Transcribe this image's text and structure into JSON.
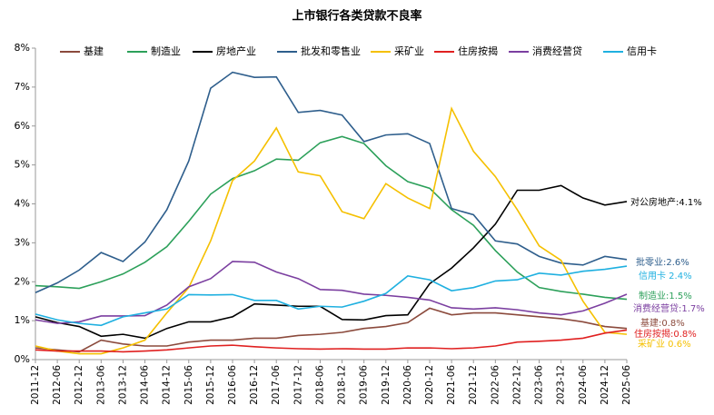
{
  "chart_data": {
    "type": "line",
    "title": "上市银行各类贷款不良率",
    "categories": [
      "2011-12",
      "2012-06",
      "2012-12",
      "2013-06",
      "2013-12",
      "2014-06",
      "2014-12",
      "2015-06",
      "2015-12",
      "2016-06",
      "2016-12",
      "2017-06",
      "2017-12",
      "2018-06",
      "2018-12",
      "2019-06",
      "2019-12",
      "2020-06",
      "2020-12",
      "2021-06",
      "2021-12",
      "2022-06",
      "2022-12",
      "2023-06",
      "2023-12",
      "2024-06",
      "2024-12",
      "2025-06"
    ],
    "series": [
      {
        "name": "基建",
        "color": "#8b4a3c",
        "values": [
          0.3,
          0.25,
          0.2,
          0.5,
          0.4,
          0.35,
          0.35,
          0.45,
          0.5,
          0.5,
          0.55,
          0.55,
          0.62,
          0.65,
          0.7,
          0.8,
          0.85,
          0.95,
          1.32,
          1.15,
          1.2,
          1.2,
          1.15,
          1.1,
          1.05,
          0.97,
          0.85,
          0.8
        ]
      },
      {
        "name": "制造业",
        "color": "#2ca05a",
        "values": [
          1.9,
          1.87,
          1.83,
          2.0,
          2.2,
          2.5,
          2.9,
          3.55,
          4.25,
          4.65,
          4.85,
          5.15,
          5.12,
          5.57,
          5.73,
          5.55,
          4.98,
          4.57,
          4.4,
          3.85,
          3.45,
          2.8,
          2.25,
          1.85,
          1.75,
          1.68,
          1.6,
          1.55
        ]
      },
      {
        "name": "房地产业",
        "color": "#000000",
        "values": [
          1.1,
          0.95,
          0.85,
          0.6,
          0.65,
          0.55,
          0.8,
          0.97,
          0.97,
          1.1,
          1.43,
          1.4,
          1.37,
          1.37,
          1.03,
          1.02,
          1.13,
          1.15,
          1.95,
          2.35,
          2.87,
          3.48,
          4.35,
          4.35,
          4.47,
          4.15,
          3.97,
          4.06
        ]
      },
      {
        "name": "批发和零售业",
        "color": "#2e5e8c",
        "values": [
          1.72,
          1.97,
          2.3,
          2.75,
          2.52,
          3.02,
          3.85,
          5.1,
          6.97,
          7.38,
          7.25,
          7.26,
          6.35,
          6.4,
          6.28,
          5.6,
          5.77,
          5.8,
          5.55,
          3.88,
          3.72,
          3.05,
          2.97,
          2.65,
          2.48,
          2.43,
          2.65,
          2.57
        ]
      },
      {
        "name": "采矿业",
        "color": "#f5c000",
        "values": [
          0.35,
          0.22,
          0.15,
          0.15,
          0.3,
          0.5,
          1.2,
          1.85,
          3.05,
          4.6,
          5.1,
          5.95,
          4.82,
          4.72,
          3.8,
          3.62,
          4.52,
          4.15,
          3.88,
          6.45,
          5.35,
          4.7,
          3.85,
          2.92,
          2.55,
          1.5,
          0.7,
          0.65
        ]
      },
      {
        "name": "住房按揭",
        "color": "#e02020",
        "values": [
          0.25,
          0.22,
          0.22,
          0.22,
          0.2,
          0.22,
          0.25,
          0.3,
          0.35,
          0.37,
          0.33,
          0.3,
          0.28,
          0.27,
          0.28,
          0.27,
          0.27,
          0.3,
          0.3,
          0.28,
          0.3,
          0.35,
          0.45,
          0.47,
          0.5,
          0.55,
          0.68,
          0.76
        ]
      },
      {
        "name": "消费经营贷",
        "color": "#7b3fa0",
        "values": [
          1.02,
          0.93,
          0.97,
          1.12,
          1.12,
          1.13,
          1.4,
          1.87,
          2.08,
          2.52,
          2.5,
          2.25,
          2.08,
          1.8,
          1.78,
          1.68,
          1.65,
          1.6,
          1.53,
          1.33,
          1.3,
          1.33,
          1.28,
          1.2,
          1.15,
          1.25,
          1.45,
          1.68
        ]
      },
      {
        "name": "信用卡",
        "color": "#1fb0e0",
        "values": [
          1.17,
          1.02,
          0.93,
          0.88,
          1.1,
          1.2,
          1.3,
          1.67,
          1.66,
          1.67,
          1.52,
          1.52,
          1.3,
          1.37,
          1.35,
          1.5,
          1.7,
          2.15,
          2.05,
          1.77,
          1.85,
          2.02,
          2.05,
          2.22,
          2.17,
          2.27,
          2.32,
          2.4
        ]
      }
    ],
    "ylim": [
      0,
      8
    ],
    "yticks": [
      {
        "value": 0,
        "label": "0%"
      },
      {
        "value": 1,
        "label": "1%"
      },
      {
        "value": 2,
        "label": "2%"
      },
      {
        "value": 3,
        "label": "3%"
      },
      {
        "value": 4,
        "label": "4%"
      },
      {
        "value": 5,
        "label": "5%"
      },
      {
        "value": 6,
        "label": "6%"
      },
      {
        "value": 7,
        "label": "7%"
      },
      {
        "value": 8,
        "label": "8%"
      }
    ],
    "annotations": [
      {
        "text": "对公房地产:4.1%",
        "color": "#000000"
      },
      {
        "text": "批零业:2.6%",
        "color": "#2e5e8c"
      },
      {
        "text": "信用卡 2.4%",
        "color": "#1fb0e0"
      },
      {
        "text": "制造业:1.5%",
        "color": "#2ca05a"
      },
      {
        "text": "消费经营贷:1.7%",
        "color": "#7b3fa0"
      },
      {
        "text": "基建:0.8%",
        "color": "#8b4a3c"
      },
      {
        "text": "住房按揭:0.8%",
        "color": "#e02020"
      },
      {
        "text": "采矿业 0.6%",
        "color": "#f5c000"
      }
    ]
  }
}
